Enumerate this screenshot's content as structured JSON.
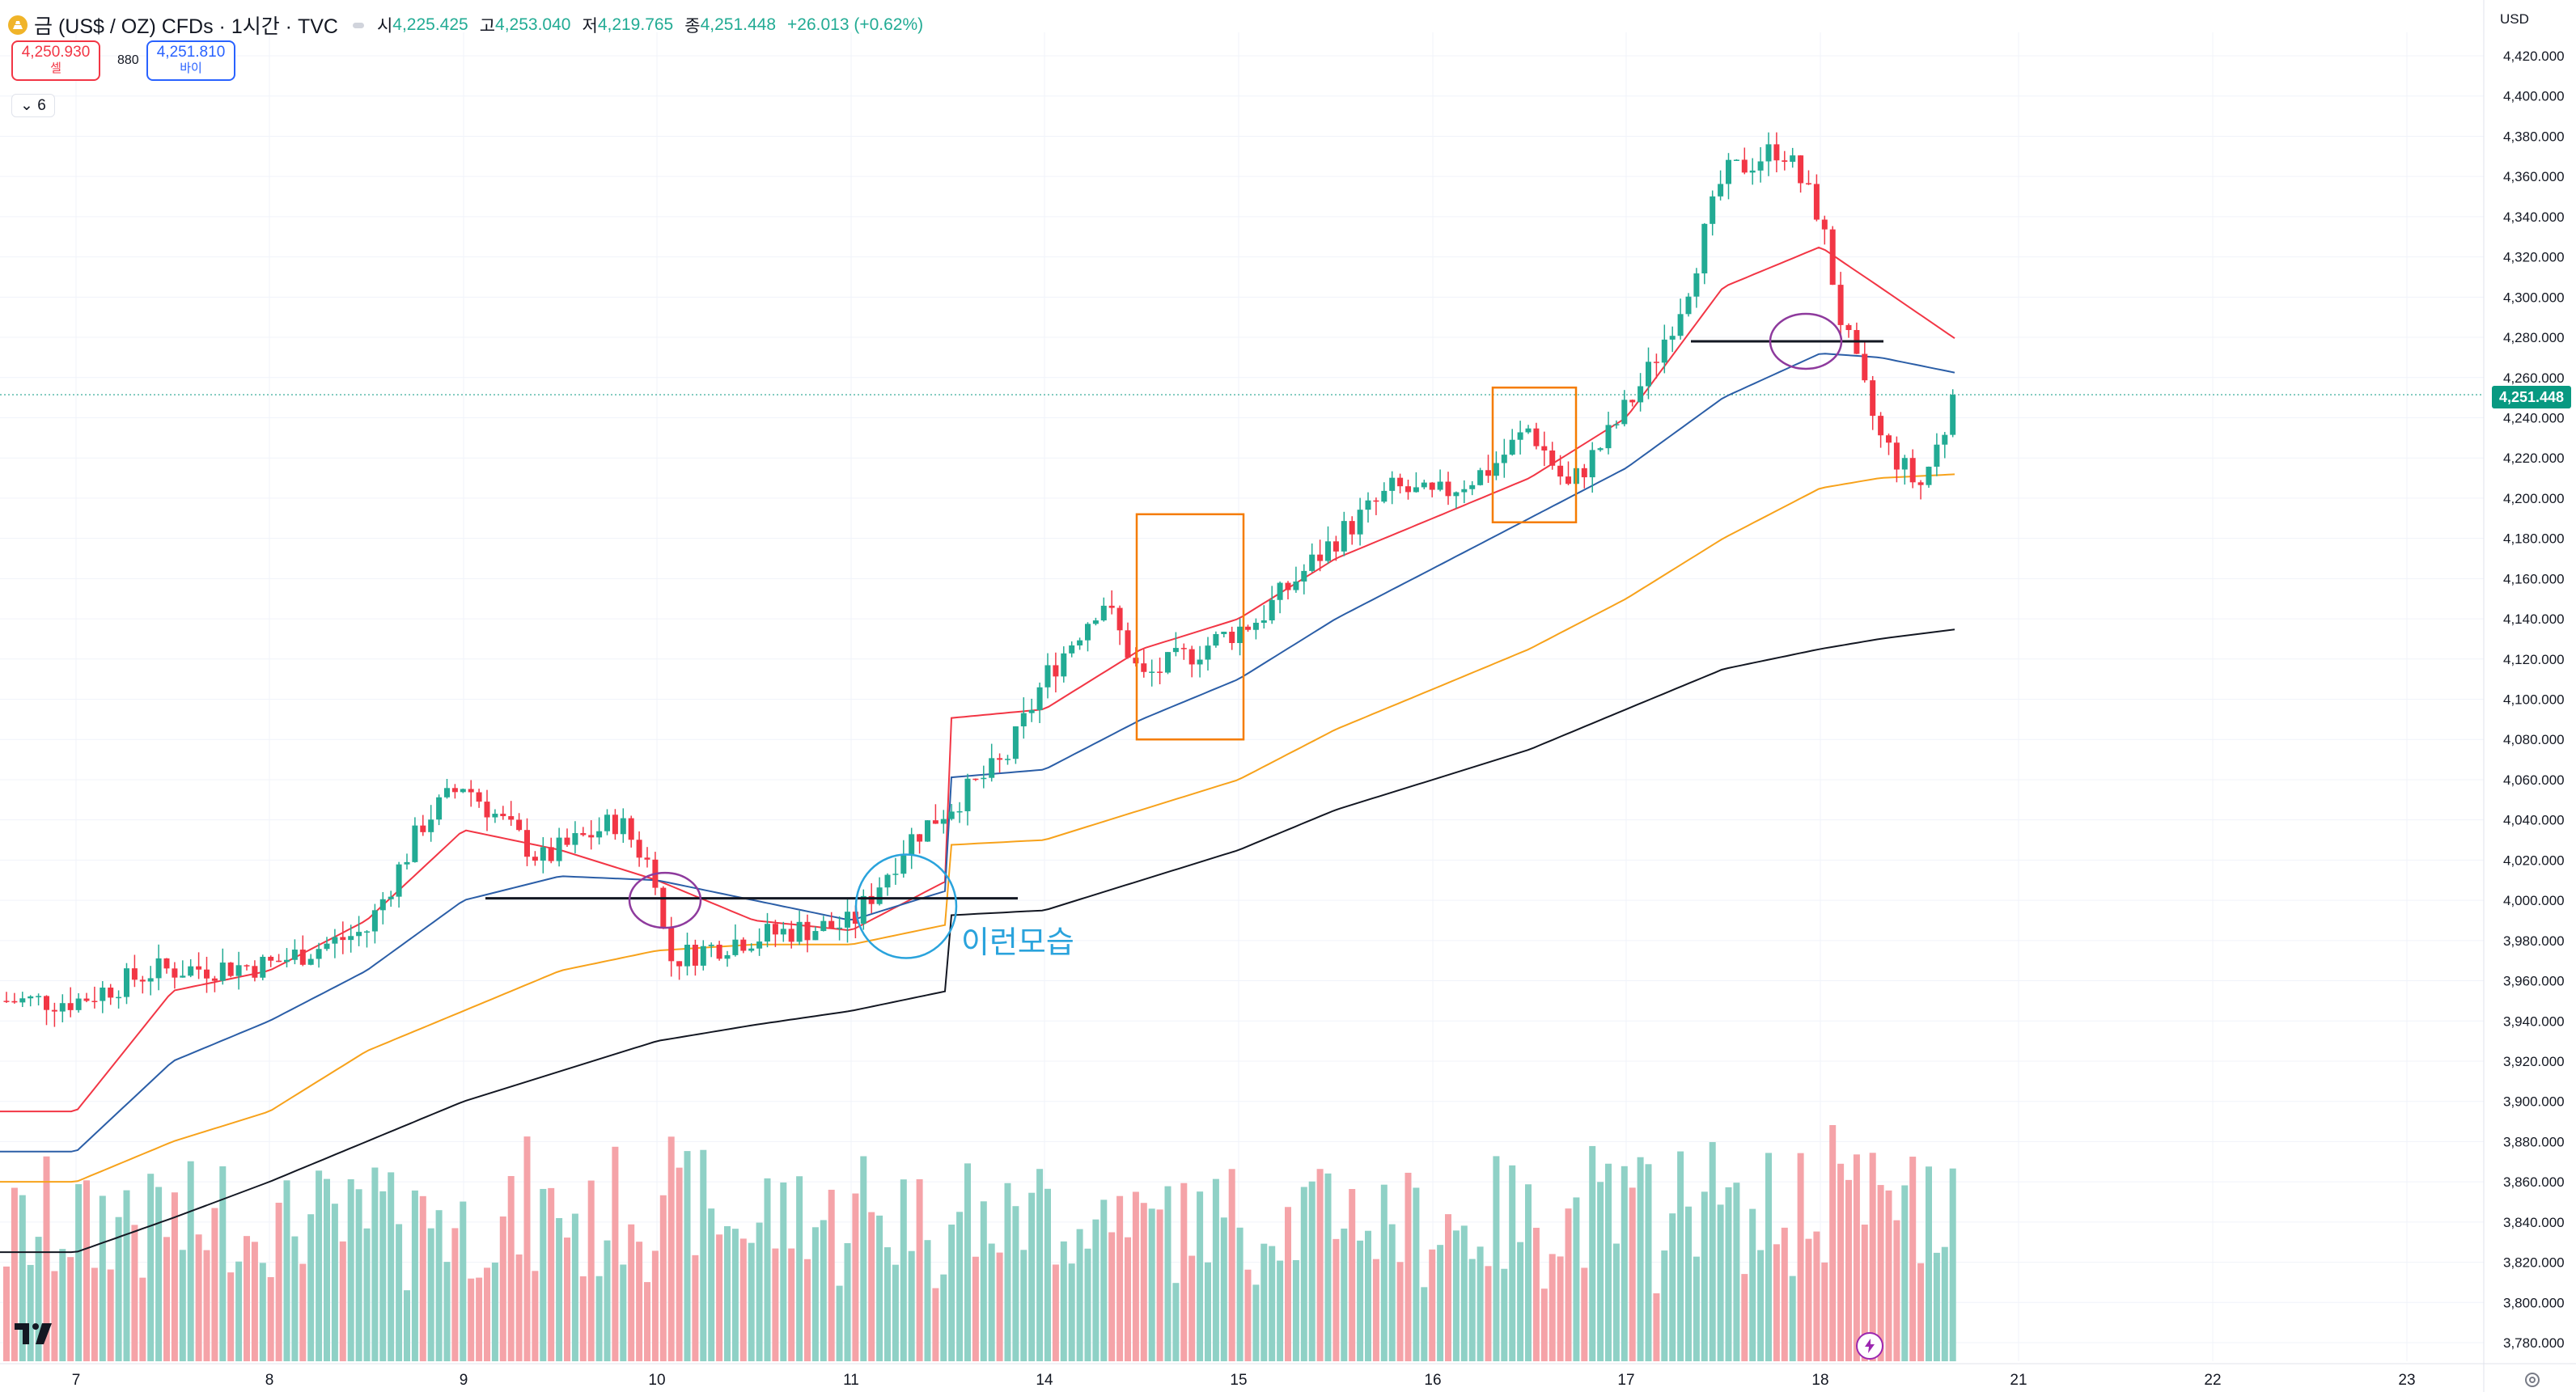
{
  "header": {
    "title": "금 (US$ / OZ) CFDs · 1시간 · TVC",
    "ohlc": [
      {
        "key": "시",
        "value": "4,225.425"
      },
      {
        "key": "고",
        "value": "4,253.040"
      },
      {
        "key": "저",
        "value": "4,219.765"
      },
      {
        "key": "종",
        "value": "4,251.448"
      }
    ],
    "change": "+26.013 (+0.62%)"
  },
  "trade": {
    "sell_price": "4,250.930",
    "sell_label": "셀",
    "spread": "880",
    "buy_price": "4,251.810",
    "buy_label": "바이"
  },
  "indicator_toggle": "6",
  "currency": "USD",
  "last_price_tag": "4,251.448",
  "annotation_text": "이런모습",
  "colors": {
    "up": "#22ab94",
    "down": "#f23645",
    "volume_up": "#8fd1c6",
    "volume_down": "#f5a3a8",
    "ma_fast": "#f23645",
    "ma_mid": "#2b5ea7",
    "ma_slow": "#f7a21b",
    "ma_long": "#131722",
    "box": "#f57c00",
    "circle_purple": "#8e3a9d",
    "circle_blue": "#2aa3dc"
  },
  "chart_data": {
    "type": "candlestick",
    "timeframe": "1 hour",
    "x_tick_labels": [
      "7",
      "8",
      "9",
      "10",
      "11",
      "14",
      "15",
      "16",
      "17",
      "18",
      "21",
      "22",
      "23"
    ],
    "y_tick_labels": [
      "4,420.000",
      "4,400.000",
      "4,380.000",
      "4,360.000",
      "4,340.000",
      "4,320.000",
      "4,300.000",
      "4,280.000",
      "4,260.000",
      "4,240.000",
      "4,220.000",
      "4,200.000",
      "4,180.000",
      "4,160.000",
      "4,140.000",
      "4,120.000",
      "4,100.000",
      "4,080.000",
      "4,060.000",
      "4,040.000",
      "4,020.000",
      "4,000.000",
      "3,980.000",
      "3,960.000",
      "3,940.000",
      "3,920.000",
      "3,900.000",
      "3,880.000",
      "3,860.000",
      "3,840.000",
      "3,820.000",
      "3,800.000",
      "3,780.000"
    ],
    "ylim": [
      3775,
      4432
    ],
    "price_anchors": [
      [
        "7",
        3950
      ],
      [
        "7.4",
        3965
      ],
      [
        "8",
        3968
      ],
      [
        "8.5",
        3985
      ],
      [
        "8.8",
        4040
      ],
      [
        "9",
        4058
      ],
      [
        "9.4",
        4020
      ],
      [
        "9.8",
        4040
      ],
      [
        "10",
        4012
      ],
      [
        "10.05",
        3970
      ],
      [
        "10.4",
        3980
      ],
      [
        "10.7",
        3985
      ],
      [
        "11",
        3988
      ],
      [
        "11.3",
        4030
      ],
      [
        "11.8",
        4070
      ],
      [
        "14",
        4110
      ],
      [
        "14.3",
        4150
      ],
      [
        "14.5",
        4110
      ],
      [
        "14.9",
        4130
      ],
      [
        "15.1",
        4140
      ],
      [
        "15.5",
        4180
      ],
      [
        "15.8",
        4205
      ],
      [
        "16",
        4200
      ],
      [
        "16.3",
        4215
      ],
      [
        "16.5",
        4235
      ],
      [
        "16.7",
        4205
      ],
      [
        "16.9",
        4230
      ],
      [
        "17.1",
        4260
      ],
      [
        "17.3",
        4300
      ],
      [
        "17.5",
        4360
      ],
      [
        "17.8",
        4375
      ],
      [
        "18",
        4340
      ],
      [
        "18.1",
        4290
      ],
      [
        "18.3",
        4230
      ],
      [
        "18.5",
        4205
      ],
      [
        "18.7",
        4251.448
      ]
    ],
    "moving_averages": [
      {
        "color": "ma_fast",
        "anchors": [
          [
            "7",
            3895
          ],
          [
            "7.5",
            3955
          ],
          [
            "8",
            3965
          ],
          [
            "8.5",
            3990
          ],
          [
            "9",
            4035
          ],
          [
            "9.5",
            4025
          ],
          [
            "10",
            4010
          ],
          [
            "10.5",
            3990
          ],
          [
            "11",
            3985
          ],
          [
            "11.5",
            4010
          ],
          [
            "12",
            4050
          ],
          [
            "14",
            4095
          ],
          [
            "14.5",
            4125
          ],
          [
            "15",
            4140
          ],
          [
            "15.5",
            4170
          ],
          [
            "16",
            4190
          ],
          [
            "16.5",
            4210
          ],
          [
            "17",
            4240
          ],
          [
            "17.5",
            4305
          ],
          [
            "18",
            4325
          ],
          [
            "18.3",
            4305
          ],
          [
            "18.7",
            4278
          ]
        ]
      },
      {
        "color": "ma_mid",
        "anchors": [
          [
            "7",
            3875
          ],
          [
            "7.5",
            3920
          ],
          [
            "8",
            3940
          ],
          [
            "8.5",
            3965
          ],
          [
            "9",
            4000
          ],
          [
            "9.5",
            4012
          ],
          [
            "10",
            4010
          ],
          [
            "10.5",
            4000
          ],
          [
            "11",
            3990
          ],
          [
            "11.5",
            4005
          ],
          [
            "12",
            4025
          ],
          [
            "14",
            4065
          ],
          [
            "14.5",
            4090
          ],
          [
            "15",
            4110
          ],
          [
            "15.5",
            4140
          ],
          [
            "16",
            4165
          ],
          [
            "16.5",
            4190
          ],
          [
            "17",
            4215
          ],
          [
            "17.5",
            4250
          ],
          [
            "18",
            4272
          ],
          [
            "18.3",
            4270
          ],
          [
            "18.7",
            4262
          ]
        ]
      },
      {
        "color": "ma_slow",
        "anchors": [
          [
            "7",
            3860
          ],
          [
            "7.5",
            3880
          ],
          [
            "8",
            3895
          ],
          [
            "8.5",
            3925
          ],
          [
            "9",
            3945
          ],
          [
            "9.5",
            3965
          ],
          [
            "10",
            3975
          ],
          [
            "10.5",
            3978
          ],
          [
            "11",
            3978
          ],
          [
            "11.5",
            3988
          ],
          [
            "12",
            4005
          ],
          [
            "14",
            4030
          ],
          [
            "14.5",
            4045
          ],
          [
            "15",
            4060
          ],
          [
            "15.5",
            4085
          ],
          [
            "16",
            4105
          ],
          [
            "16.5",
            4125
          ],
          [
            "17",
            4150
          ],
          [
            "17.5",
            4180
          ],
          [
            "18",
            4205
          ],
          [
            "18.3",
            4210
          ],
          [
            "18.7",
            4212
          ]
        ]
      },
      {
        "color": "ma_long",
        "anchors": [
          [
            "7",
            3825
          ],
          [
            "7.5",
            3842
          ],
          [
            "8",
            3860
          ],
          [
            "8.5",
            3880
          ],
          [
            "9",
            3900
          ],
          [
            "9.5",
            3915
          ],
          [
            "10",
            3930
          ],
          [
            "10.5",
            3938
          ],
          [
            "11",
            3945
          ],
          [
            "11.5",
            3955
          ],
          [
            "12",
            3970
          ],
          [
            "14",
            3995
          ],
          [
            "14.5",
            4010
          ],
          [
            "15",
            4025
          ],
          [
            "15.5",
            4045
          ],
          [
            "16",
            4060
          ],
          [
            "16.5",
            4075
          ],
          [
            "17",
            4095
          ],
          [
            "17.5",
            4115
          ],
          [
            "18",
            4125
          ],
          [
            "18.3",
            4130
          ],
          [
            "18.7",
            4135
          ]
        ]
      }
    ]
  }
}
